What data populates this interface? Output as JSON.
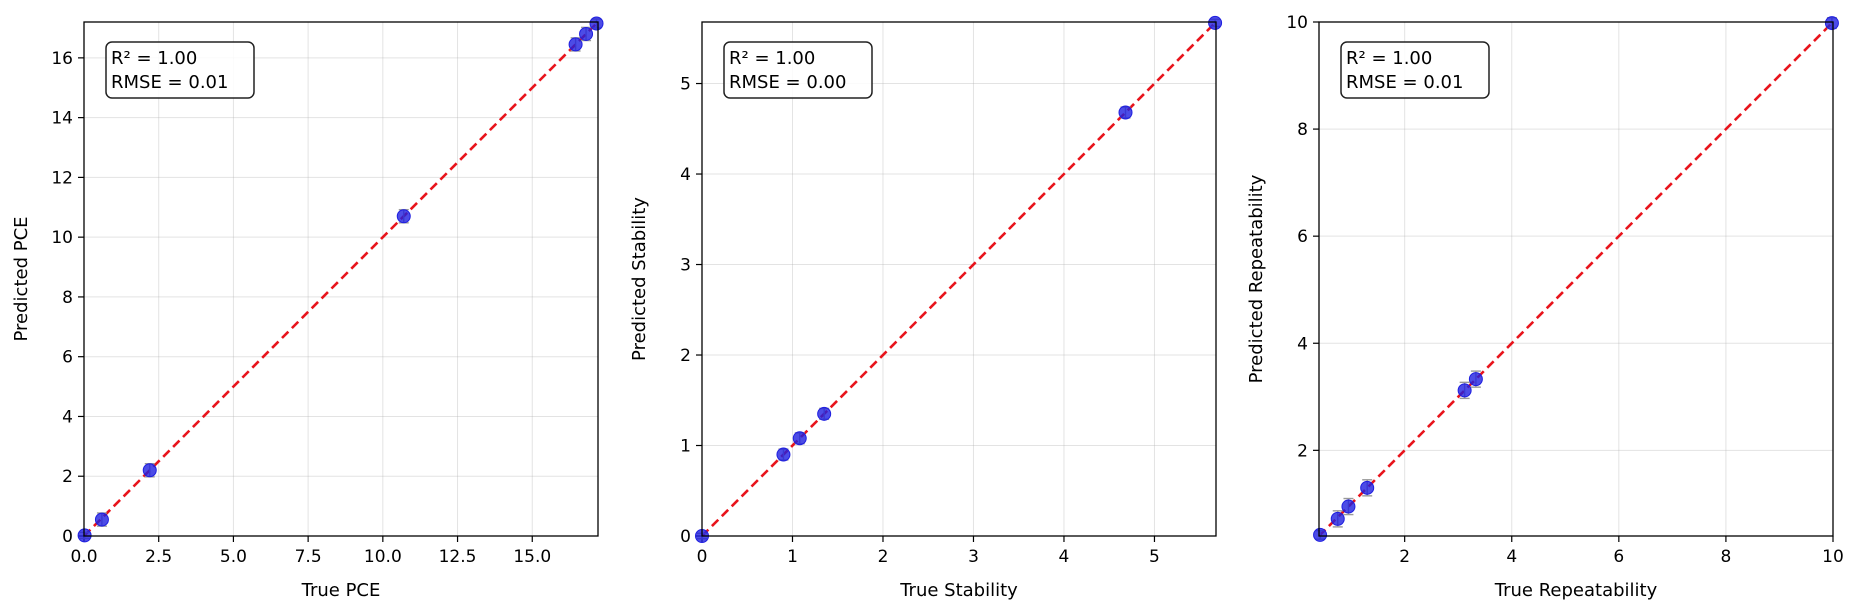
{
  "colors": {
    "points": "#1f1fe0",
    "reference_line": "#e8141c",
    "error_bars": "#9a9a9a"
  },
  "chart_data": [
    {
      "type": "scatter",
      "xlabel": "True PCE",
      "ylabel": "Predicted PCE",
      "xlim": [
        0,
        17.2
      ],
      "ylim": [
        0,
        17.2
      ],
      "xticks": [
        0,
        2.5,
        5,
        7.5,
        10,
        12.5,
        15
      ],
      "xtick_labels": [
        "0.0",
        "2.5",
        "5.0",
        "7.5",
        "10.0",
        "12.5",
        "15.0"
      ],
      "yticks": [
        0,
        2,
        4,
        6,
        8,
        10,
        12,
        14,
        16
      ],
      "ytick_labels": [
        "0",
        "2",
        "4",
        "6",
        "8",
        "10",
        "12",
        "14",
        "16"
      ],
      "grid": true,
      "reference_line": "y = x",
      "stats": [
        "R² = 1.00",
        "RMSE = 0.01"
      ],
      "points": [
        {
          "x": 0.02,
          "y": 0.02,
          "err": 0.1
        },
        {
          "x": 0.6,
          "y": 0.55,
          "err": 0.22
        },
        {
          "x": 2.2,
          "y": 2.2,
          "err": 0.22
        },
        {
          "x": 10.7,
          "y": 10.7,
          "err": 0.22
        },
        {
          "x": 16.45,
          "y": 16.45,
          "err": 0.22
        },
        {
          "x": 16.8,
          "y": 16.8,
          "err": 0.22
        },
        {
          "x": 17.15,
          "y": 17.15,
          "err": 0.15
        }
      ]
    },
    {
      "type": "scatter",
      "xlabel": "True Stability",
      "ylabel": "Predicted Stability",
      "xlim": [
        0,
        5.68
      ],
      "ylim": [
        0,
        5.68
      ],
      "xticks": [
        0,
        1,
        2,
        3,
        4,
        5
      ],
      "xtick_labels": [
        "0",
        "1",
        "2",
        "3",
        "4",
        "5"
      ],
      "yticks": [
        0,
        1,
        2,
        3,
        4,
        5
      ],
      "ytick_labels": [
        "0",
        "1",
        "2",
        "3",
        "4",
        "5"
      ],
      "grid": true,
      "reference_line": "y = x",
      "stats": [
        "R² = 1.00",
        "RMSE = 0.00"
      ],
      "points": [
        {
          "x": 0.0,
          "y": 0.0,
          "err": 0.03
        },
        {
          "x": 0.9,
          "y": 0.9,
          "err": 0.06
        },
        {
          "x": 1.08,
          "y": 1.08,
          "err": 0.06
        },
        {
          "x": 1.35,
          "y": 1.35,
          "err": 0.06
        },
        {
          "x": 4.68,
          "y": 4.68,
          "err": 0.06
        },
        {
          "x": 5.67,
          "y": 5.67,
          "err": 0.04
        }
      ]
    },
    {
      "type": "scatter",
      "xlabel": "True Repeatability",
      "ylabel": "Predicted Repeatability",
      "xlim": [
        0.4,
        10
      ],
      "ylim": [
        0.4,
        10
      ],
      "xticks": [
        2,
        4,
        6,
        8,
        10
      ],
      "xtick_labels": [
        "2",
        "4",
        "6",
        "8",
        "10"
      ],
      "yticks": [
        2,
        4,
        6,
        8,
        10
      ],
      "ytick_labels": [
        "2",
        "4",
        "6",
        "8",
        "10"
      ],
      "grid": true,
      "reference_line": "y = x",
      "stats": [
        "R² = 1.00",
        "RMSE = 0.01"
      ],
      "points": [
        {
          "x": 0.42,
          "y": 0.42,
          "err": 0.08
        },
        {
          "x": 0.75,
          "y": 0.72,
          "err": 0.15
        },
        {
          "x": 0.95,
          "y": 0.95,
          "err": 0.15
        },
        {
          "x": 1.3,
          "y": 1.3,
          "err": 0.15
        },
        {
          "x": 3.12,
          "y": 3.12,
          "err": 0.15
        },
        {
          "x": 3.33,
          "y": 3.33,
          "err": 0.15
        },
        {
          "x": 9.98,
          "y": 9.98,
          "err": 0.1
        }
      ]
    }
  ]
}
